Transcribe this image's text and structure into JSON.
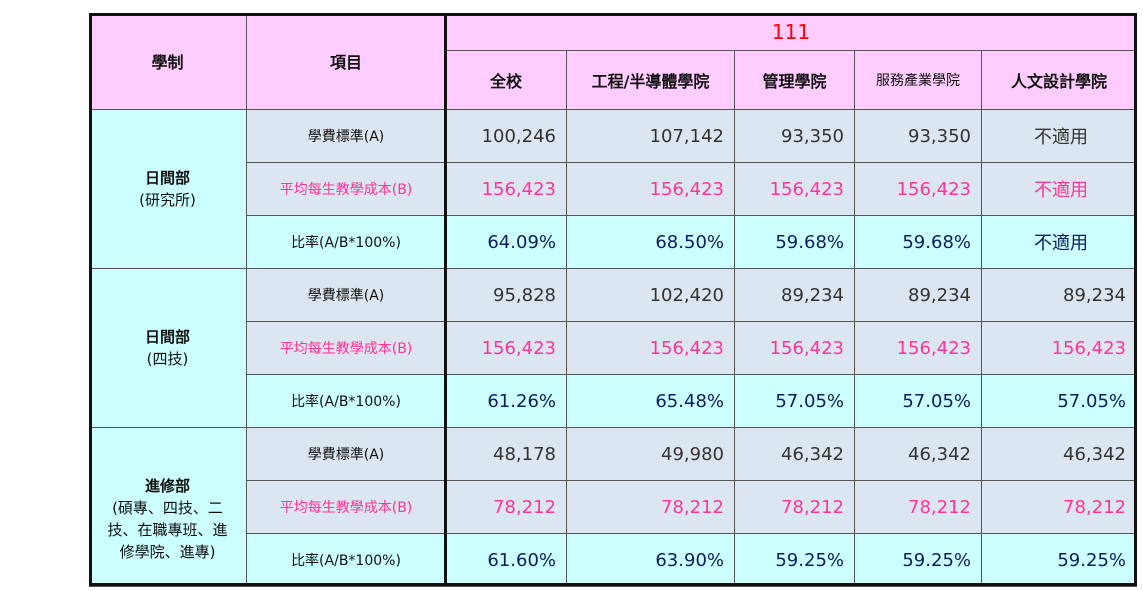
{
  "header": {
    "col_system": "學制",
    "col_item": "項目",
    "year": "111",
    "units": [
      "全校",
      "工程/半導體學院",
      "管理學院",
      "服務產業學院",
      "人文設計學院"
    ]
  },
  "groups": [
    {
      "name": "日間部",
      "sub": [
        "(研究所)"
      ],
      "rows": [
        {
          "label": "學費標準(A)",
          "kind": "fee",
          "values": [
            "100,246",
            "107,142",
            "93,350",
            "93,350",
            "不適用"
          ]
        },
        {
          "label": "平均每生教學成本(B)",
          "kind": "cost",
          "values": [
            "156,423",
            "156,423",
            "156,423",
            "156,423",
            "不適用"
          ]
        },
        {
          "label": "比率(A/B*100%)",
          "kind": "ratio",
          "values": [
            "64.09%",
            "68.50%",
            "59.68%",
            "59.68%",
            "不適用"
          ]
        }
      ]
    },
    {
      "name": "日間部",
      "sub": [
        "(四技)"
      ],
      "rows": [
        {
          "label": "學費標準(A)",
          "kind": "fee",
          "values": [
            "95,828",
            "102,420",
            "89,234",
            "89,234",
            "89,234"
          ]
        },
        {
          "label": "平均每生教學成本(B)",
          "kind": "cost",
          "values": [
            "156,423",
            "156,423",
            "156,423",
            "156,423",
            "156,423"
          ]
        },
        {
          "label": "比率(A/B*100%)",
          "kind": "ratio",
          "values": [
            "61.26%",
            "65.48%",
            "57.05%",
            "57.05%",
            "57.05%"
          ]
        }
      ]
    },
    {
      "name": "進修部",
      "sub": [
        "(碩專、四技、二",
        "技、在職專班、進",
        "修學院、進專)"
      ],
      "rows": [
        {
          "label": "學費標準(A)",
          "kind": "fee",
          "values": [
            "48,178",
            "49,980",
            "46,342",
            "46,342",
            "46,342"
          ]
        },
        {
          "label": "平均每生教學成本(B)",
          "kind": "cost",
          "values": [
            "78,212",
            "78,212",
            "78,212",
            "78,212",
            "78,212"
          ]
        },
        {
          "label": "比率(A/B*100%)",
          "kind": "ratio",
          "values": [
            "61.60%",
            "63.90%",
            "59.25%",
            "59.25%",
            "59.25%"
          ]
        }
      ]
    }
  ]
}
